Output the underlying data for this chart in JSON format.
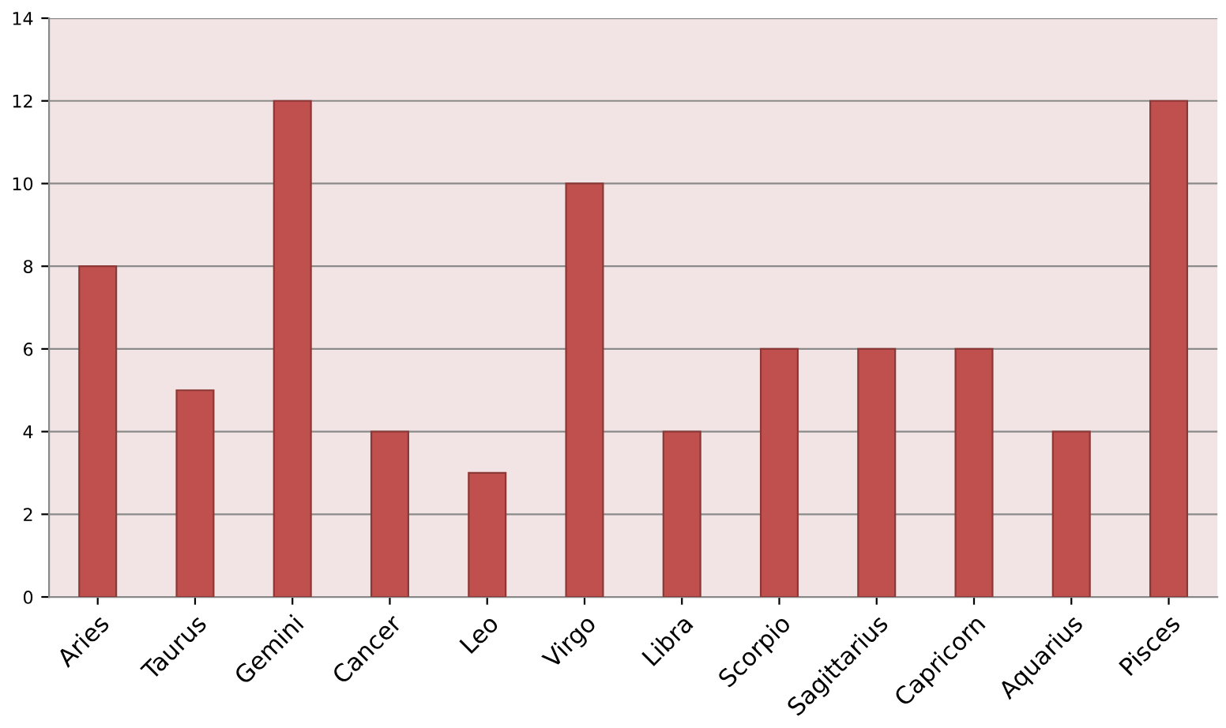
{
  "chart_data": {
    "type": "bar",
    "categories": [
      "Aries",
      "Taurus",
      "Gemini",
      "Cancer",
      "Leo",
      "Virgo",
      "Libra",
      "Scorpio",
      "Sagittarius",
      "Capricorn",
      "Aquarius",
      "Pisces"
    ],
    "values": [
      8,
      5,
      12,
      4,
      3,
      10,
      4,
      6,
      6,
      6,
      4,
      12
    ],
    "color": "#c0504d",
    "ylim": [
      0,
      14
    ],
    "yticks": [
      0,
      2,
      4,
      6,
      8,
      10,
      12,
      14
    ],
    "grid": "y",
    "legend": false
  }
}
